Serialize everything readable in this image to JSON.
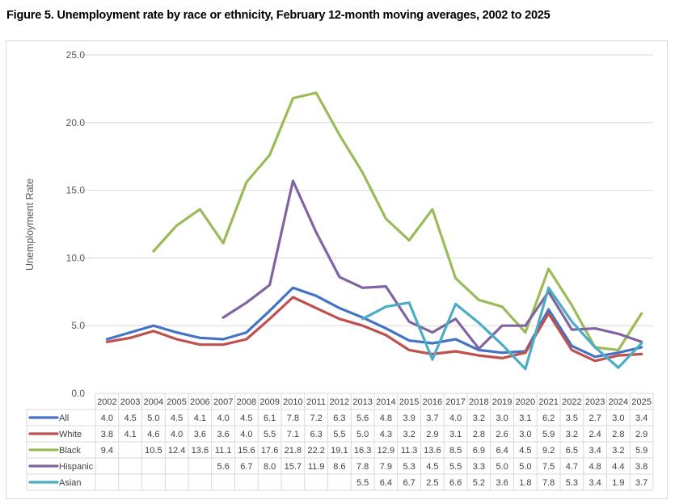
{
  "title": "Figure 5. Unemployment rate by race or ethnicity, February 12-month moving averages, 2002 to 2025",
  "chart_data": {
    "type": "line",
    "title": "Figure 5. Unemployment rate by race or ethnicity, February 12-month moving averages, 2002 to 2025",
    "xlabel": "",
    "ylabel": "Unemployment Rate",
    "ylim": [
      0,
      25
    ],
    "yticks": [
      "0.0",
      "5.0",
      "10.0",
      "15.0",
      "20.0",
      "25.0"
    ],
    "grid": true,
    "legend": "data-table-bottom",
    "categories": [
      "2002",
      "2003",
      "2004",
      "2005",
      "2006",
      "2007",
      "2008",
      "2009",
      "2010",
      "2011",
      "2012",
      "2013",
      "2014",
      "2015",
      "2016",
      "2017",
      "2018",
      "2019",
      "2020",
      "2021",
      "2022",
      "2023",
      "2024",
      "2025"
    ],
    "series": [
      {
        "name": "All",
        "color": "#4472c4",
        "values": [
          4.0,
          4.5,
          5.0,
          4.5,
          4.1,
          4.0,
          4.5,
          6.1,
          7.8,
          7.2,
          6.3,
          5.6,
          4.8,
          3.9,
          3.7,
          4.0,
          3.2,
          3.0,
          3.1,
          6.2,
          3.5,
          2.7,
          3.0,
          3.4
        ]
      },
      {
        "name": "White",
        "color": "#c0504d",
        "values": [
          3.8,
          4.1,
          4.6,
          4.0,
          3.6,
          3.6,
          4.0,
          5.5,
          7.1,
          6.3,
          5.5,
          5.0,
          4.3,
          3.2,
          2.9,
          3.1,
          2.8,
          2.6,
          3.0,
          5.9,
          3.2,
          2.4,
          2.8,
          2.9
        ]
      },
      {
        "name": "Black",
        "color": "#9bbb59",
        "values": [
          9.4,
          null,
          10.5,
          12.4,
          13.6,
          11.1,
          15.6,
          17.6,
          21.8,
          22.2,
          19.1,
          16.3,
          12.9,
          11.3,
          13.6,
          8.5,
          6.9,
          6.4,
          4.5,
          9.2,
          6.5,
          3.4,
          3.2,
          5.9
        ]
      },
      {
        "name": "Hispanic",
        "color": "#8064a2",
        "values": [
          null,
          null,
          null,
          null,
          null,
          5.6,
          6.7,
          8.0,
          15.7,
          11.9,
          8.6,
          7.8,
          7.9,
          5.3,
          4.5,
          5.5,
          3.3,
          5.0,
          5.0,
          7.5,
          4.7,
          4.8,
          4.4,
          3.8
        ]
      },
      {
        "name": "Asian",
        "color": "#4bacc6",
        "values": [
          null,
          null,
          null,
          null,
          null,
          null,
          null,
          null,
          null,
          null,
          null,
          5.5,
          6.4,
          6.7,
          2.5,
          6.6,
          5.2,
          3.6,
          1.8,
          7.8,
          5.3,
          3.4,
          1.9,
          3.7
        ]
      }
    ]
  }
}
